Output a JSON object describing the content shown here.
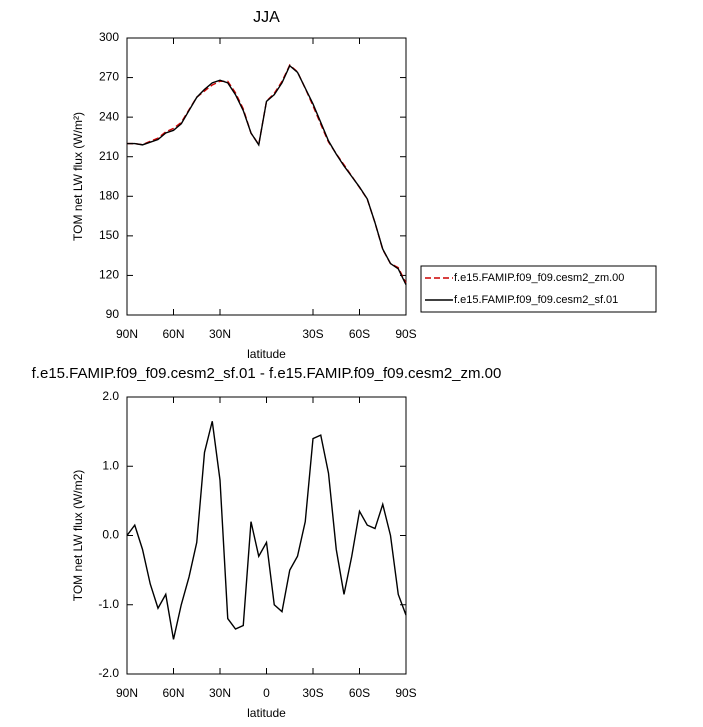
{
  "chart_data": [
    {
      "type": "line",
      "title": "JJA",
      "xlabel": "latitude",
      "ylabel": "TOM net LW flux (W/m²)",
      "x": [
        90,
        85,
        80,
        75,
        70,
        65,
        60,
        55,
        50,
        45,
        40,
        35,
        30,
        25,
        20,
        15,
        10,
        5,
        0,
        -5,
        -10,
        -15,
        -20,
        -25,
        -30,
        -35,
        -40,
        -45,
        -50,
        -55,
        -60,
        -65,
        -70,
        -75,
        -80,
        -85,
        -90
      ],
      "series": [
        {
          "name": "f.e15.FAMIP.f09_f09.cesm2_zm.00",
          "color": "#cc0000",
          "dash": true,
          "values": [
            220,
            219.9,
            219.2,
            221.7,
            224.1,
            228.9,
            231.5,
            236,
            245.6,
            255.1,
            259.8,
            264.4,
            267.2,
            267.2,
            258.4,
            246.3,
            227.8,
            219.3,
            252.1,
            258,
            267.1,
            279.5,
            274.3,
            261.8,
            248.6,
            234.6,
            221.1,
            212.2,
            203.9,
            195.3,
            186.7,
            177.9,
            159.9,
            139.6,
            129,
            125.9,
            114.2
          ]
        },
        {
          "name": "f.e15.FAMIP.f09_f09.cesm2_sf.01",
          "color": "#000000",
          "dash": false,
          "values": [
            220,
            220,
            219,
            221,
            223,
            228,
            230,
            235,
            245,
            255,
            261,
            266,
            268,
            266,
            257,
            245,
            228,
            219,
            252,
            257,
            266,
            279,
            274,
            262,
            250,
            236,
            222,
            212,
            203,
            195,
            187,
            178,
            160,
            140,
            129,
            125,
            113
          ]
        }
      ],
      "xlim": [
        90,
        -90
      ],
      "xticks": [
        {
          "value": 90,
          "label": "90N"
        },
        {
          "value": 60,
          "label": "60N"
        },
        {
          "value": 30,
          "label": "30N"
        },
        {
          "value": -30,
          "label": "30S"
        },
        {
          "value": -60,
          "label": "60S"
        },
        {
          "value": -90,
          "label": "90S"
        }
      ],
      "ylim": [
        90,
        300
      ],
      "yticks": [
        90,
        120,
        150,
        180,
        210,
        240,
        270,
        300
      ],
      "legend": "right"
    },
    {
      "type": "line",
      "title": "f.e15.FAMIP.f09_f09.cesm2_sf.01 - f.e15.FAMIP.f09_f09.cesm2_zm.00",
      "xlabel": "latitude",
      "ylabel": "TOM net LW flux (W/m2)",
      "x": [
        90,
        85,
        80,
        75,
        70,
        65,
        60,
        55,
        50,
        45,
        40,
        35,
        30,
        25,
        20,
        15,
        10,
        5,
        0,
        -5,
        -10,
        -15,
        -20,
        -25,
        -30,
        -35,
        -40,
        -45,
        -50,
        -55,
        -60,
        -65,
        -70,
        -75,
        -80,
        -85,
        -90
      ],
      "series": [
        {
          "color": "#000000",
          "dash": false,
          "values": [
            0,
            0.15,
            -0.2,
            -0.7,
            -1.05,
            -0.85,
            -1.5,
            -1,
            -0.6,
            -0.1,
            1.2,
            1.65,
            0.8,
            -1.2,
            -1.35,
            -1.3,
            0.2,
            -0.3,
            -0.1,
            -1,
            -1.1,
            -0.5,
            -0.3,
            0.2,
            1.4,
            1.45,
            0.9,
            -0.2,
            -0.85,
            -0.3,
            0.35,
            0.15,
            0.1,
            0.45,
            0,
            -0.85,
            -1.15
          ]
        }
      ],
      "xlim": [
        90,
        -90
      ],
      "xticks": [
        {
          "value": 90,
          "label": "90N"
        },
        {
          "value": 60,
          "label": "60N"
        },
        {
          "value": 30,
          "label": "30N"
        },
        0,
        {
          "value": -30,
          "label": "30S"
        },
        {
          "value": -60,
          "label": "60S"
        },
        {
          "value": -90,
          "label": "90S"
        }
      ],
      "ylim": [
        -2,
        2
      ],
      "yticks": [
        {
          "value": -2,
          "label": "-2.0"
        },
        {
          "value": -1,
          "label": "-1.0"
        },
        {
          "value": 0,
          "label": "0.0"
        },
        {
          "value": 1,
          "label": "1.0"
        },
        {
          "value": 2,
          "label": "2.0"
        }
      ]
    }
  ]
}
